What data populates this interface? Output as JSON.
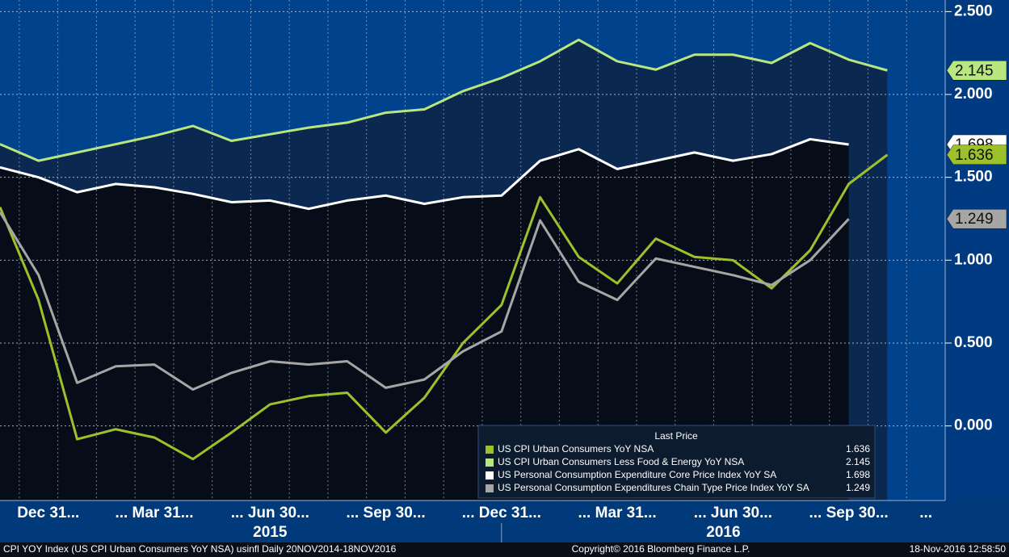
{
  "chart_data": {
    "type": "line",
    "legend_title": "Last Price",
    "categories": [
      null,
      null,
      null,
      null,
      null,
      null,
      null,
      null,
      null,
      null,
      null,
      null,
      null,
      null,
      null,
      null,
      null,
      null,
      null,
      null,
      null,
      null,
      null,
      null
    ],
    "xlim": [
      0,
      24.5
    ],
    "xticks": [
      {
        "value": 1,
        "label": "Dec 31..."
      },
      {
        "value": 4,
        "label": "... Mar 31..."
      },
      {
        "value": 7,
        "label": "... Jun 30..."
      },
      {
        "value": 10,
        "label": "... Sep 30..."
      },
      {
        "value": 13,
        "label": "... Dec 31..."
      },
      {
        "value": 16,
        "label": "... Mar 31..."
      },
      {
        "value": 19,
        "label": "... Jun 30..."
      },
      {
        "value": 22,
        "label": "... Sep 30..."
      },
      {
        "value": 24,
        "label": "..."
      }
    ],
    "year_ticks": [
      13
    ],
    "year_labels": [
      {
        "value": 7,
        "label": "2015"
      },
      {
        "value": 18.75,
        "label": "2016"
      }
    ],
    "ylim": [
      -0.45,
      2.57
    ],
    "yticks": [
      {
        "value": 0,
        "label": "0.000"
      },
      {
        "value": 0.5,
        "label": "0.500"
      },
      {
        "value": 1,
        "label": "1.000"
      },
      {
        "value": 1.5,
        "label": "1.500"
      },
      {
        "value": 2,
        "label": "2.000"
      },
      {
        "value": 2.5,
        "label": "2.500"
      }
    ],
    "grid": true,
    "background": "#00428c",
    "series": [
      {
        "name": "US CPI Urban Consumers YoY NSA",
        "color": "#9dc12b",
        "values": [
          1.32,
          0.76,
          -0.08,
          -0.02,
          -0.07,
          -0.2,
          -0.04,
          0.13,
          0.18,
          0.2,
          -0.04,
          0.17,
          0.5,
          0.73,
          1.38,
          1.02,
          0.86,
          1.13,
          1.02,
          1.0,
          0.83,
          1.06,
          1.46,
          1.636
        ]
      },
      {
        "name": "US CPI Urban Consumers Less Food & Energy YoY NSA",
        "color": "#b8e67f",
        "fill": "#0a2850",
        "values": [
          1.7,
          1.6,
          1.65,
          1.7,
          1.75,
          1.81,
          1.72,
          1.76,
          1.8,
          1.83,
          1.89,
          1.91,
          2.02,
          2.1,
          2.2,
          2.33,
          2.2,
          2.15,
          2.24,
          2.24,
          2.19,
          2.31,
          2.21,
          2.145
        ]
      },
      {
        "name": "US Personal Consumption Expenditure Core Price Index YoY SA",
        "color": "#ffffff",
        "fill": "#070d18",
        "values": [
          1.56,
          1.5,
          1.41,
          1.46,
          1.44,
          1.4,
          1.35,
          1.36,
          1.31,
          1.36,
          1.39,
          1.34,
          1.38,
          1.39,
          1.6,
          1.67,
          1.55,
          1.6,
          1.65,
          1.6,
          1.64,
          1.73,
          1.698,
          null
        ]
      },
      {
        "name": "US Personal Consumption Expenditures Chain Type Price Index YoY SA",
        "color": "#a6a6a6",
        "values": [
          1.29,
          0.91,
          0.26,
          0.36,
          0.37,
          0.22,
          0.32,
          0.39,
          0.37,
          0.39,
          0.23,
          0.28,
          0.45,
          0.57,
          1.24,
          0.87,
          0.76,
          1.01,
          0.96,
          0.91,
          0.85,
          1.0,
          1.249,
          null
        ]
      }
    ],
    "footer_left": "CPI YOY Index (US CPI Urban Consumers YoY NSA) usinfl  Daily 20NOV2014-18NOV2016",
    "footer_center": "Copyright© 2016 Bloomberg Finance L.P.",
    "footer_right": "18-Nov-2016 12:58:50"
  }
}
